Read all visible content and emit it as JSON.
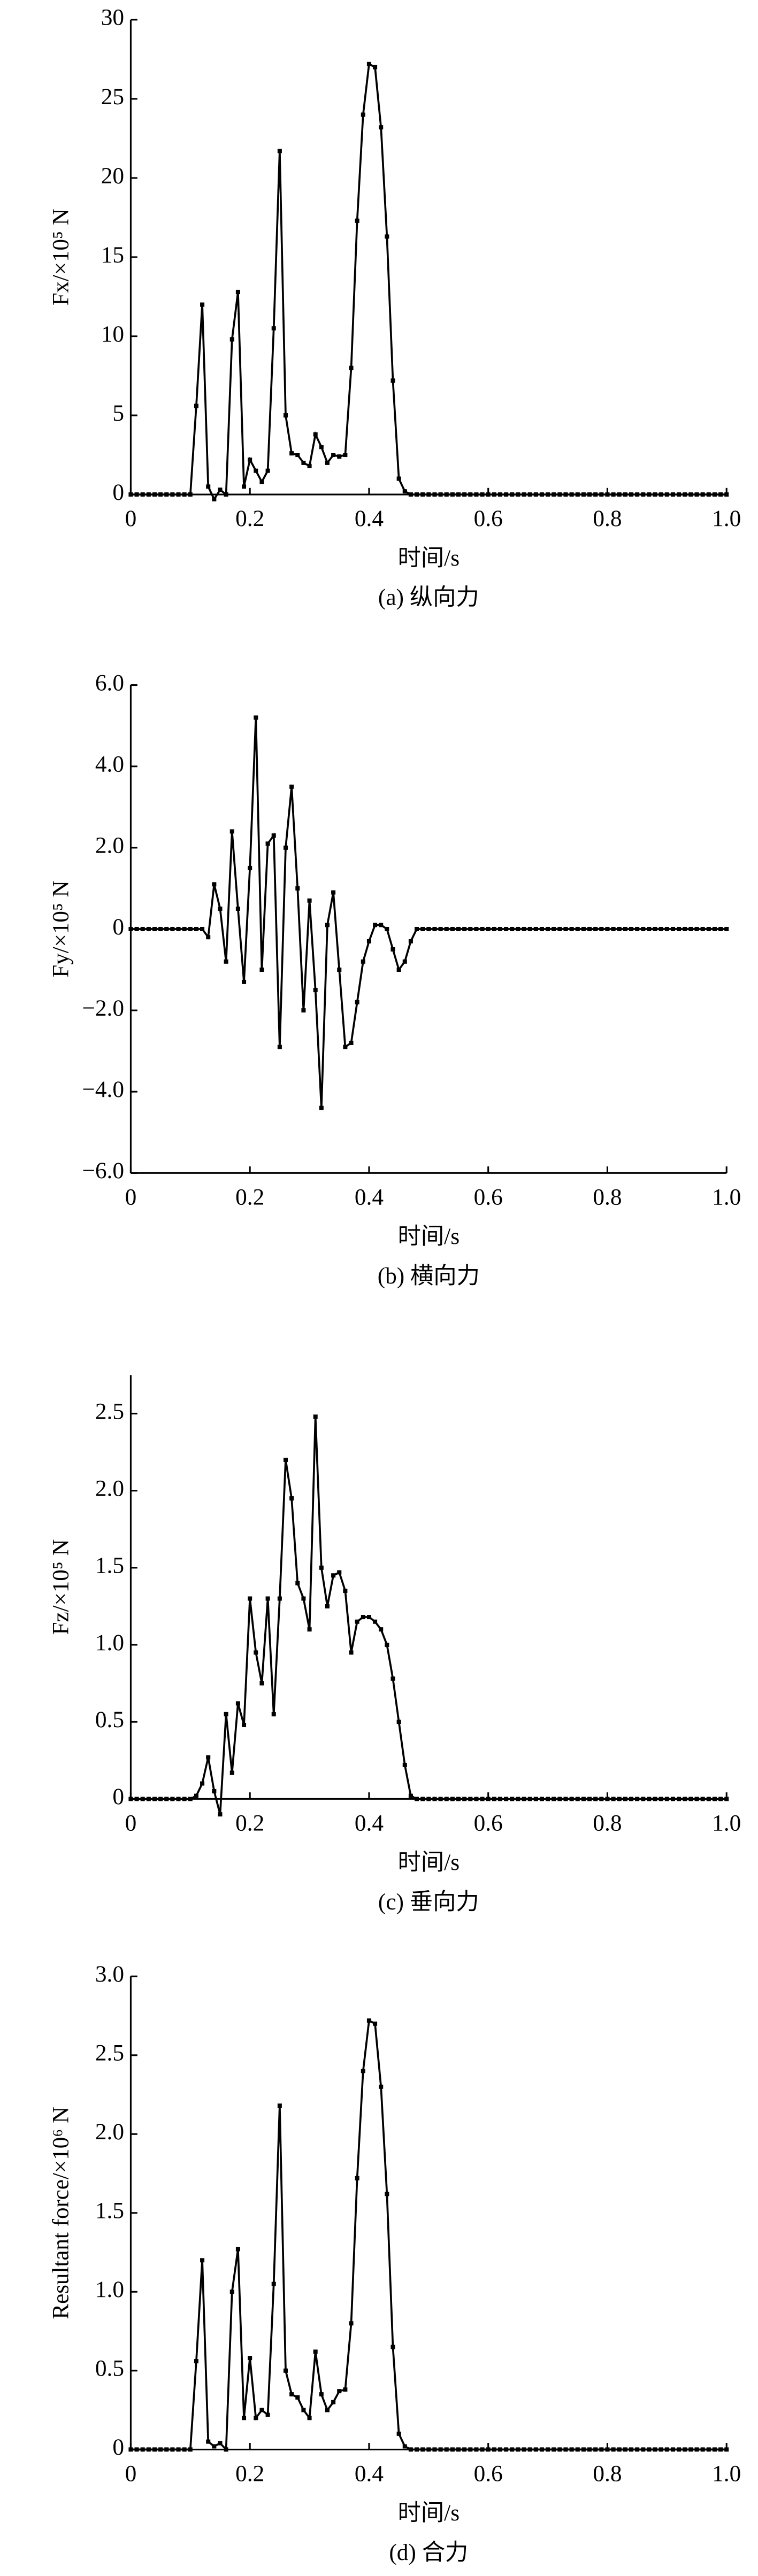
{
  "chart_data": [
    {
      "type": "line",
      "caption": "(a) 纵向力",
      "x_label": "时间/s",
      "y_label": "Fx/×10⁵ N",
      "color": "#000000",
      "x": [
        0,
        0.01,
        0.02,
        0.03,
        0.04,
        0.05,
        0.06,
        0.07,
        0.08,
        0.09,
        0.1,
        0.11,
        0.12,
        0.13,
        0.14,
        0.15,
        0.16,
        0.17,
        0.18,
        0.19,
        0.2,
        0.21,
        0.22,
        0.23,
        0.24,
        0.25,
        0.26,
        0.27,
        0.28,
        0.29,
        0.3,
        0.31,
        0.32,
        0.33,
        0.34,
        0.35,
        0.36,
        0.37,
        0.38,
        0.39,
        0.4,
        0.41,
        0.42,
        0.43,
        0.44,
        0.45,
        0.46,
        0.47,
        0.48,
        0.49,
        0.5,
        0.51,
        0.52,
        0.53,
        0.54,
        0.55,
        0.56,
        0.57,
        0.58,
        0.59,
        0.6,
        0.61,
        0.62,
        0.63,
        0.64,
        0.65,
        0.66,
        0.67,
        0.68,
        0.69,
        0.7,
        0.71,
        0.72,
        0.73,
        0.74,
        0.75,
        0.76,
        0.77,
        0.78,
        0.79,
        0.8,
        0.81,
        0.82,
        0.83,
        0.84,
        0.85,
        0.86,
        0.87,
        0.88,
        0.89,
        0.9,
        0.91,
        0.92,
        0.93,
        0.94,
        0.95,
        0.96,
        0.97,
        0.98,
        0.99,
        1
      ],
      "values": [
        0,
        0,
        0,
        0,
        0,
        0,
        0,
        0,
        0,
        0,
        0,
        5.6,
        12,
        0.5,
        -0.3,
        0.3,
        0,
        9.8,
        12.8,
        0.5,
        2.2,
        1.5,
        0.8,
        1.5,
        10.5,
        21.7,
        5,
        2.6,
        2.5,
        2,
        1.8,
        3.8,
        3,
        2,
        2.5,
        2.4,
        2.5,
        8,
        17.3,
        24,
        27.2,
        27,
        23.2,
        16.3,
        7.2,
        1,
        0.2,
        0,
        0,
        0,
        0,
        0,
        0,
        0,
        0,
        0,
        0,
        0,
        0,
        0,
        0,
        0,
        0,
        0,
        0,
        0,
        0,
        0,
        0,
        0,
        0,
        0,
        0,
        0,
        0,
        0,
        0,
        0,
        0,
        0,
        0,
        0,
        0,
        0,
        0,
        0,
        0,
        0,
        0,
        0,
        0,
        0,
        0,
        0,
        0,
        0,
        0,
        0,
        0,
        0,
        0
      ],
      "xlim": [
        0,
        1
      ],
      "xticks": [
        0,
        0.2,
        0.4,
        0.6,
        0.8,
        {
          "value": 1,
          "label": "1.0"
        }
      ],
      "ylim": [
        0,
        30
      ],
      "yticks": [
        0,
        5,
        10,
        15,
        20,
        25,
        30
      ]
    },
    {
      "type": "line",
      "caption": "(b) 横向力",
      "x_label": "时间/s",
      "y_label": "Fy/×10⁵ N",
      "color": "#000000",
      "x": [
        0,
        0.01,
        0.02,
        0.03,
        0.04,
        0.05,
        0.06,
        0.07,
        0.08,
        0.09,
        0.1,
        0.11,
        0.12,
        0.13,
        0.14,
        0.15,
        0.16,
        0.17,
        0.18,
        0.19,
        0.2,
        0.21,
        0.22,
        0.23,
        0.24,
        0.25,
        0.26,
        0.27,
        0.28,
        0.29,
        0.3,
        0.31,
        0.32,
        0.33,
        0.34,
        0.35,
        0.36,
        0.37,
        0.38,
        0.39,
        0.4,
        0.41,
        0.42,
        0.43,
        0.44,
        0.45,
        0.46,
        0.47,
        0.48,
        0.49,
        0.5,
        0.51,
        0.52,
        0.53,
        0.54,
        0.55,
        0.56,
        0.57,
        0.58,
        0.59,
        0.6,
        0.61,
        0.62,
        0.63,
        0.64,
        0.65,
        0.66,
        0.67,
        0.68,
        0.69,
        0.7,
        0.71,
        0.72,
        0.73,
        0.74,
        0.75,
        0.76,
        0.77,
        0.78,
        0.79,
        0.8,
        0.81,
        0.82,
        0.83,
        0.84,
        0.85,
        0.86,
        0.87,
        0.88,
        0.89,
        0.9,
        0.91,
        0.92,
        0.93,
        0.94,
        0.95,
        0.96,
        0.97,
        0.98,
        0.99,
        1
      ],
      "values": [
        0,
        0,
        0,
        0,
        0,
        0,
        0,
        0,
        0,
        0,
        0,
        0,
        0,
        -0.2,
        1.1,
        0.5,
        -0.8,
        2.4,
        0.5,
        -1.3,
        1.5,
        5.2,
        -1,
        2.1,
        2.3,
        -2.9,
        2,
        3.5,
        1,
        -2,
        0.7,
        -1.5,
        -4.4,
        0.1,
        0.9,
        -1,
        -2.9,
        -2.8,
        -1.8,
        -0.8,
        -0.3,
        0.1,
        0.1,
        0,
        -0.5,
        -1,
        -0.8,
        -0.3,
        0,
        0,
        0,
        0,
        0,
        0,
        0,
        0,
        0,
        0,
        0,
        0,
        0,
        0,
        0,
        0,
        0,
        0,
        0,
        0,
        0,
        0,
        0,
        0,
        0,
        0,
        0,
        0,
        0,
        0,
        0,
        0,
        0,
        0,
        0,
        0,
        0,
        0,
        0,
        0,
        0,
        0,
        0,
        0,
        0,
        0,
        0,
        0,
        0,
        0,
        0,
        0,
        0
      ],
      "xlim": [
        0,
        1
      ],
      "xticks": [
        0,
        0.2,
        0.4,
        0.6,
        0.8,
        {
          "value": 1,
          "label": "1.0"
        }
      ],
      "ylim": [
        -6,
        6
      ],
      "yticks": [
        {
          "value": -6,
          "label": "−6.0"
        },
        {
          "value": -4,
          "label": "−4.0"
        },
        {
          "value": -2,
          "label": "−2.0"
        },
        0,
        {
          "value": 2,
          "label": "2.0"
        },
        {
          "value": 4,
          "label": "4.0"
        },
        {
          "value": 6,
          "label": "6.0"
        }
      ]
    },
    {
      "type": "line",
      "caption": "(c) 垂向力",
      "x_label": "时间/s",
      "y_label": "Fz/×10⁵ N",
      "color": "#000000",
      "x": [
        0,
        0.01,
        0.02,
        0.03,
        0.04,
        0.05,
        0.06,
        0.07,
        0.08,
        0.09,
        0.1,
        0.11,
        0.12,
        0.13,
        0.14,
        0.15,
        0.16,
        0.17,
        0.18,
        0.19,
        0.2,
        0.21,
        0.22,
        0.23,
        0.24,
        0.25,
        0.26,
        0.27,
        0.28,
        0.29,
        0.3,
        0.31,
        0.32,
        0.33,
        0.34,
        0.35,
        0.36,
        0.37,
        0.38,
        0.39,
        0.4,
        0.41,
        0.42,
        0.43,
        0.44,
        0.45,
        0.46,
        0.47,
        0.48,
        0.49,
        0.5,
        0.51,
        0.52,
        0.53,
        0.54,
        0.55,
        0.56,
        0.57,
        0.58,
        0.59,
        0.6,
        0.61,
        0.62,
        0.63,
        0.64,
        0.65,
        0.66,
        0.67,
        0.68,
        0.69,
        0.7,
        0.71,
        0.72,
        0.73,
        0.74,
        0.75,
        0.76,
        0.77,
        0.78,
        0.79,
        0.8,
        0.81,
        0.82,
        0.83,
        0.84,
        0.85,
        0.86,
        0.87,
        0.88,
        0.89,
        0.9,
        0.91,
        0.92,
        0.93,
        0.94,
        0.95,
        0.96,
        0.97,
        0.98,
        0.99,
        1
      ],
      "values": [
        0,
        0,
        0,
        0,
        0,
        0,
        0,
        0,
        0,
        0,
        0,
        0.02,
        0.1,
        0.27,
        0.05,
        -0.1,
        0.55,
        0.17,
        0.62,
        0.48,
        1.3,
        0.95,
        0.75,
        1.3,
        0.55,
        1.3,
        2.2,
        1.95,
        1.4,
        1.3,
        1.1,
        2.48,
        1.5,
        1.25,
        1.45,
        1.47,
        1.35,
        0.95,
        1.15,
        1.18,
        1.18,
        1.15,
        1.1,
        1,
        0.78,
        0.5,
        0.22,
        0.02,
        0,
        0,
        0,
        0,
        0,
        0,
        0,
        0,
        0,
        0,
        0,
        0,
        0,
        0,
        0,
        0,
        0,
        0,
        0,
        0,
        0,
        0,
        0,
        0,
        0,
        0,
        0,
        0,
        0,
        0,
        0,
        0,
        0,
        0,
        0,
        0,
        0,
        0,
        0,
        0,
        0,
        0,
        0,
        0,
        0,
        0,
        0,
        0,
        0,
        0,
        0,
        0,
        0
      ],
      "xlim": [
        0,
        1
      ],
      "xticks": [
        0,
        0.2,
        0.4,
        0.6,
        0.8,
        {
          "value": 1,
          "label": "1.0"
        }
      ],
      "ylim": [
        0,
        2.75
      ],
      "yticks": [
        0,
        0.5,
        {
          "value": 1,
          "label": "1.0"
        },
        1.5,
        {
          "value": 2,
          "label": "2.0"
        },
        2.5
      ]
    },
    {
      "type": "line",
      "caption": "(d) 合力",
      "x_label": "时间/s",
      "y_label": "Resultant force/×10⁶ N",
      "color": "#000000",
      "x": [
        0,
        0.01,
        0.02,
        0.03,
        0.04,
        0.05,
        0.06,
        0.07,
        0.08,
        0.09,
        0.1,
        0.11,
        0.12,
        0.13,
        0.14,
        0.15,
        0.16,
        0.17,
        0.18,
        0.19,
        0.2,
        0.21,
        0.22,
        0.23,
        0.24,
        0.25,
        0.26,
        0.27,
        0.28,
        0.29,
        0.3,
        0.31,
        0.32,
        0.33,
        0.34,
        0.35,
        0.36,
        0.37,
        0.38,
        0.39,
        0.4,
        0.41,
        0.42,
        0.43,
        0.44,
        0.45,
        0.46,
        0.47,
        0.48,
        0.49,
        0.5,
        0.51,
        0.52,
        0.53,
        0.54,
        0.55,
        0.56,
        0.57,
        0.58,
        0.59,
        0.6,
        0.61,
        0.62,
        0.63,
        0.64,
        0.65,
        0.66,
        0.67,
        0.68,
        0.69,
        0.7,
        0.71,
        0.72,
        0.73,
        0.74,
        0.75,
        0.76,
        0.77,
        0.78,
        0.79,
        0.8,
        0.81,
        0.82,
        0.83,
        0.84,
        0.85,
        0.86,
        0.87,
        0.88,
        0.89,
        0.9,
        0.91,
        0.92,
        0.93,
        0.94,
        0.95,
        0.96,
        0.97,
        0.98,
        0.99,
        1
      ],
      "values": [
        0,
        0,
        0,
        0,
        0,
        0,
        0,
        0,
        0,
        0,
        0,
        0.56,
        1.2,
        0.05,
        0.02,
        0.04,
        0,
        1,
        1.27,
        0.2,
        0.58,
        0.2,
        0.25,
        0.22,
        1.05,
        2.18,
        0.5,
        0.35,
        0.33,
        0.25,
        0.2,
        0.62,
        0.35,
        0.25,
        0.3,
        0.37,
        0.38,
        0.8,
        1.72,
        2.4,
        2.72,
        2.7,
        2.3,
        1.62,
        0.65,
        0.1,
        0.02,
        0,
        0,
        0,
        0,
        0,
        0,
        0,
        0,
        0,
        0,
        0,
        0,
        0,
        0,
        0,
        0,
        0,
        0,
        0,
        0,
        0,
        0,
        0,
        0,
        0,
        0,
        0,
        0,
        0,
        0,
        0,
        0,
        0,
        0,
        0,
        0,
        0,
        0,
        0,
        0,
        0,
        0,
        0,
        0,
        0,
        0,
        0,
        0,
        0,
        0,
        0,
        0,
        0,
        0
      ],
      "xlim": [
        0,
        1
      ],
      "xticks": [
        0,
        0.2,
        0.4,
        0.6,
        0.8,
        {
          "value": 1,
          "label": "1.0"
        }
      ],
      "ylim": [
        0,
        3
      ],
      "yticks": [
        0,
        0.5,
        {
          "value": 1,
          "label": "1.0"
        },
        1.5,
        {
          "value": 2,
          "label": "2.0"
        },
        2.5,
        {
          "value": 3,
          "label": "3.0"
        }
      ]
    }
  ]
}
